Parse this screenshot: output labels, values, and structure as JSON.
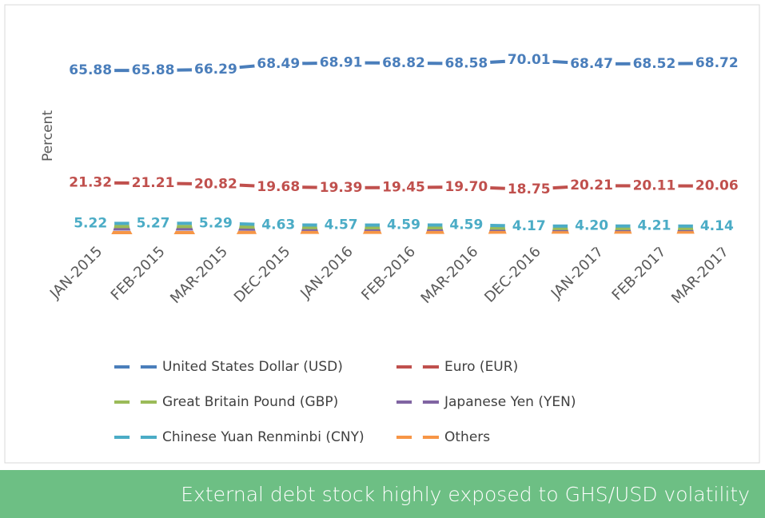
{
  "chart_data": {
    "type": "line",
    "y_label": "Percent",
    "categories": [
      "JAN-2015",
      "FEB-2015",
      "MAR-2015",
      "DEC-2015",
      "JAN-2016",
      "FEB-2016",
      "MAR-2016",
      "DEC-2016",
      "JAN-2017",
      "FEB-2017",
      "MAR-2017"
    ],
    "ylim": [
      0,
      90
    ],
    "series": [
      {
        "name": "United States Dollar (USD)",
        "color": "#4a7ebb",
        "values": [
          65.88,
          65.88,
          66.29,
          68.49,
          68.91,
          68.82,
          68.58,
          70.01,
          68.47,
          68.52,
          68.72
        ],
        "value_labels": [
          "65.88",
          "65.88",
          "66.29",
          "68.49",
          "68.91",
          "68.82",
          "68.58",
          "70.01",
          "68.47",
          "68.52",
          "68.72"
        ]
      },
      {
        "name": "Euro (EUR)",
        "color": "#c0504d",
        "values": [
          21.32,
          21.21,
          20.82,
          19.68,
          19.39,
          19.45,
          19.7,
          18.75,
          20.21,
          20.11,
          20.06
        ],
        "value_labels": [
          "21.32",
          "21.21",
          "20.82",
          "19.68",
          "19.39",
          "19.45",
          "19.70",
          "18.75",
          "20.21",
          "20.11",
          "20.06"
        ]
      },
      {
        "name": "Great Britain Pound (GBP)",
        "color": "#9bbb59",
        "values": [
          4.0,
          4.0,
          4.0,
          3.6,
          3.5,
          3.5,
          3.5,
          3.2,
          3.2,
          3.2,
          3.2
        ]
      },
      {
        "name": "Japanese Yen (YEN)",
        "color": "#8064a2",
        "values": [
          3.0,
          3.0,
          3.0,
          2.9,
          2.9,
          2.9,
          2.9,
          2.8,
          2.8,
          2.8,
          2.8
        ]
      },
      {
        "name": "Chinese Yuan Renminbi (CNY)",
        "color": "#4bacc6",
        "values": [
          5.22,
          5.27,
          5.29,
          4.63,
          4.57,
          4.59,
          4.59,
          4.17,
          4.2,
          4.21,
          4.14
        ],
        "value_labels": [
          "5.22",
          "5.27",
          "5.29",
          "4.63",
          "4.57",
          "4.59",
          "4.59",
          "4.17",
          "4.20",
          "4.21",
          "4.14"
        ]
      },
      {
        "name": "Others",
        "color": "#f79646",
        "values": [
          1.6,
          1.6,
          1.6,
          1.7,
          1.7,
          1.7,
          1.7,
          1.8,
          1.8,
          1.8,
          1.8
        ]
      }
    ]
  },
  "banner": "External debt stock highly exposed to GHS/USD volatility"
}
